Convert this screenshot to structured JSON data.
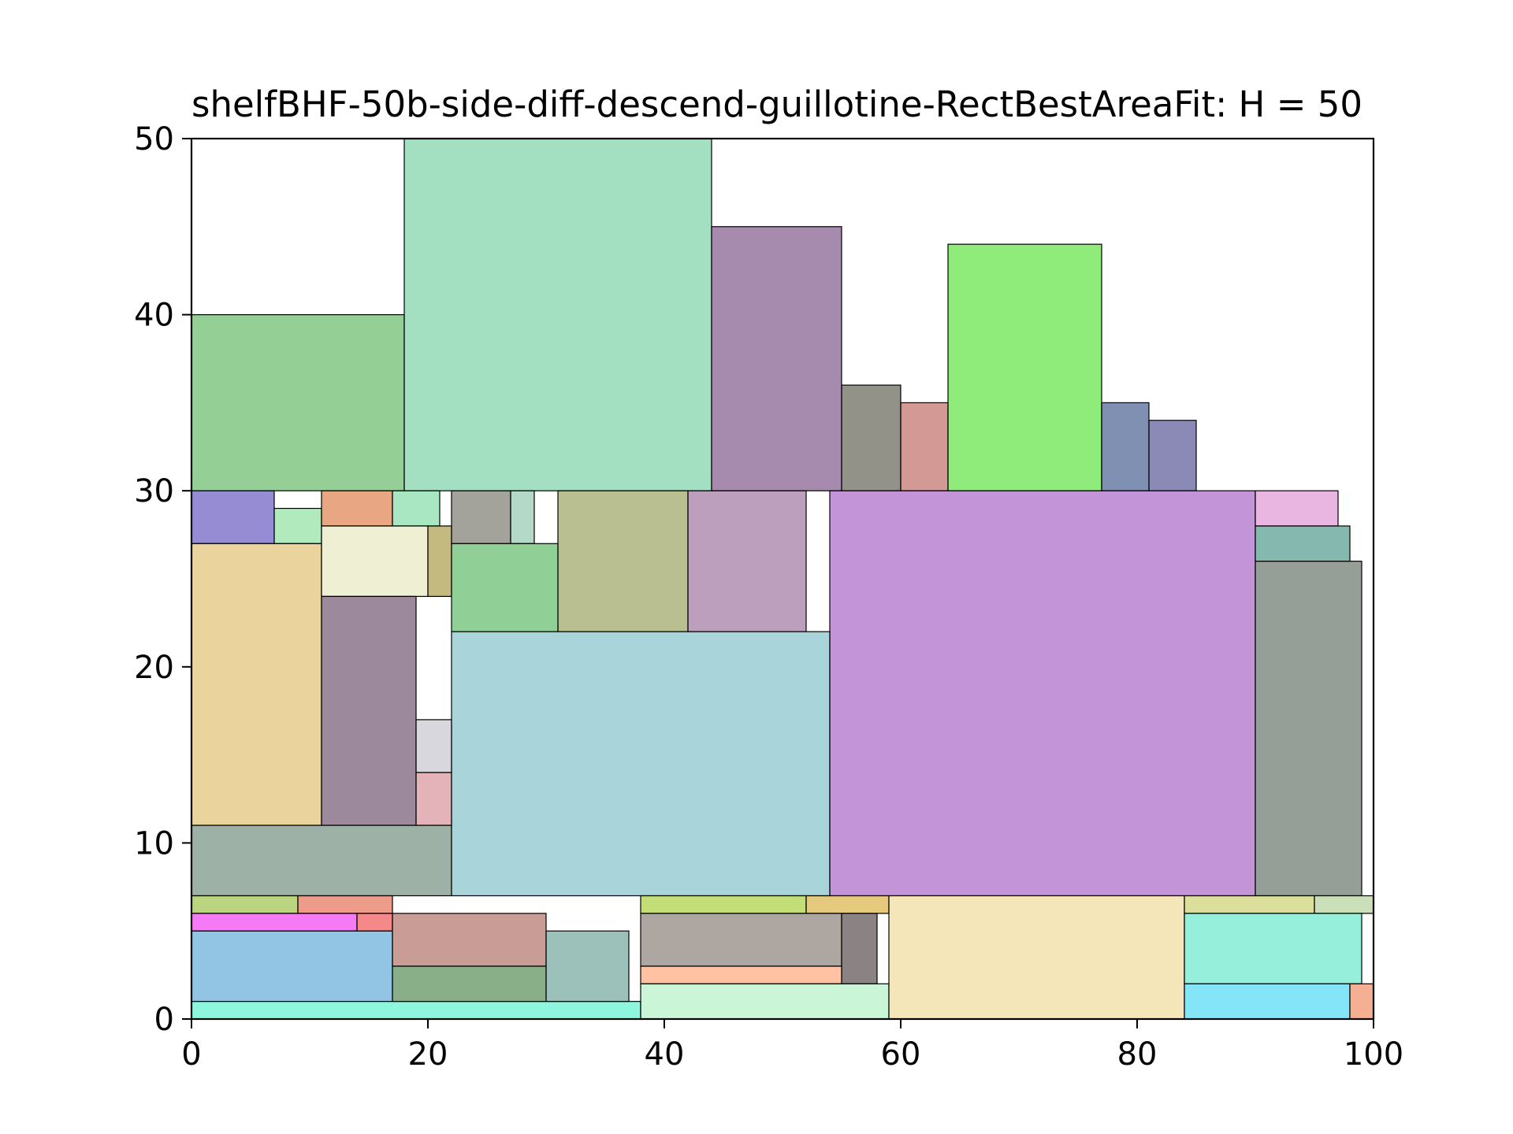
{
  "chart_data": {
    "type": "rectangle-packing",
    "title": "shelfBHF-50b-side-diff-descend-guillotine-RectBestAreaFit: H = 50",
    "xlim": [
      0,
      100
    ],
    "ylim": [
      0,
      50
    ],
    "x_ticks": [
      0,
      20,
      40,
      60,
      80,
      100
    ],
    "y_ticks": [
      0,
      10,
      20,
      30,
      40,
      50
    ],
    "grid": false,
    "legend": "none",
    "rects": [
      {
        "x": 0,
        "y": 30,
        "w": 18,
        "h": 10,
        "color": "#4caf50"
      },
      {
        "x": 18,
        "y": 30,
        "w": 26,
        "h": 20,
        "color": "#66cc99"
      },
      {
        "x": 44,
        "y": 30,
        "w": 11,
        "h": 15,
        "color": "#6a3d7a"
      },
      {
        "x": 55,
        "y": 30,
        "w": 5,
        "h": 6,
        "color": "#4a4a3a"
      },
      {
        "x": 60,
        "y": 30,
        "w": 4,
        "h": 5,
        "color": "#b5564e"
      },
      {
        "x": 64,
        "y": 30,
        "w": 13,
        "h": 14,
        "color": "#44dd22"
      },
      {
        "x": 77,
        "y": 30,
        "w": 4,
        "h": 5,
        "color": "#2a4680"
      },
      {
        "x": 81,
        "y": 30,
        "w": 4,
        "h": 4,
        "color": "#3e3a86"
      },
      {
        "x": 0,
        "y": 27,
        "w": 7,
        "h": 3,
        "color": "#5040b8"
      },
      {
        "x": 7,
        "y": 27,
        "w": 4,
        "h": 2,
        "color": "#7ddc90"
      },
      {
        "x": 11,
        "y": 28,
        "w": 6,
        "h": 2,
        "color": "#d96a2f"
      },
      {
        "x": 17,
        "y": 28,
        "w": 4,
        "h": 2,
        "color": "#6fd69a"
      },
      {
        "x": 22,
        "y": 27,
        "w": 5,
        "h": 3,
        "color": "#676558"
      },
      {
        "x": 27,
        "y": 27,
        "w": 2,
        "h": 3,
        "color": "#82bfa4"
      },
      {
        "x": 31,
        "y": 22,
        "w": 11,
        "h": 8,
        "color": "#8c9447"
      },
      {
        "x": 42,
        "y": 22,
        "w": 10,
        "h": 8,
        "color": "#8f5f8f"
      },
      {
        "x": 54,
        "y": 7,
        "w": 36,
        "h": 23,
        "color": "#9c4cc0"
      },
      {
        "x": 90,
        "y": 28,
        "w": 7,
        "h": 2,
        "color": "#d986cc"
      },
      {
        "x": 90,
        "y": 26,
        "w": 8,
        "h": 2,
        "color": "#338a7a"
      },
      {
        "x": 90,
        "y": 7,
        "w": 9,
        "h": 19,
        "color": "#4e5f52"
      },
      {
        "x": 0,
        "y": 11,
        "w": 11,
        "h": 16,
        "color": "#dcb65a"
      },
      {
        "x": 11,
        "y": 24,
        "w": 9,
        "h": 4,
        "color": "#e4e4b8"
      },
      {
        "x": 20,
        "y": 24,
        "w": 2,
        "h": 4,
        "color": "#9c8a28"
      },
      {
        "x": 22,
        "y": 22,
        "w": 9,
        "h": 5,
        "color": "#46b050"
      },
      {
        "x": 11,
        "y": 11,
        "w": 8,
        "h": 13,
        "color": "#5c3a5a"
      },
      {
        "x": 19,
        "y": 14,
        "w": 3,
        "h": 3,
        "color": "#bdbdc6"
      },
      {
        "x": 19,
        "y": 11,
        "w": 3,
        "h": 3,
        "color": "#d0808a"
      },
      {
        "x": 0,
        "y": 7,
        "w": 22,
        "h": 4,
        "color": "#5c7d6a"
      },
      {
        "x": 22,
        "y": 7,
        "w": 32,
        "h": 15,
        "color": "#70b8c2"
      },
      {
        "x": 0,
        "y": 6,
        "w": 9,
        "h": 1,
        "color": "#8cb82c"
      },
      {
        "x": 9,
        "y": 6,
        "w": 8,
        "h": 1,
        "color": "#e05a3a"
      },
      {
        "x": 0,
        "y": 5,
        "w": 14,
        "h": 1,
        "color": "#ee22ee"
      },
      {
        "x": 14,
        "y": 5,
        "w": 3,
        "h": 1,
        "color": "#ee3a3a"
      },
      {
        "x": 0,
        "y": 1,
        "w": 17,
        "h": 4,
        "color": "#4a9ed0"
      },
      {
        "x": 0,
        "y": 0,
        "w": 38,
        "h": 1,
        "color": "#44f0c8"
      },
      {
        "x": 17,
        "y": 3,
        "w": 13,
        "h": 3,
        "color": "#a55a4e"
      },
      {
        "x": 17,
        "y": 1,
        "w": 13,
        "h": 2,
        "color": "#3a7a3a"
      },
      {
        "x": 30,
        "y": 1,
        "w": 7,
        "h": 4,
        "color": "#5a988c"
      },
      {
        "x": 38,
        "y": 6,
        "w": 14,
        "h": 1,
        "color": "#9cc81c"
      },
      {
        "x": 52,
        "y": 6,
        "w": 7,
        "h": 1,
        "color": "#d4a524"
      },
      {
        "x": 38,
        "y": 3,
        "w": 17,
        "h": 3,
        "color": "#786a62"
      },
      {
        "x": 55,
        "y": 2,
        "w": 3,
        "h": 4,
        "color": "#3e2e30"
      },
      {
        "x": 38,
        "y": 2,
        "w": 17,
        "h": 1,
        "color": "#ff9a66"
      },
      {
        "x": 38,
        "y": 0,
        "w": 21,
        "h": 2,
        "color": "#a8eebc"
      },
      {
        "x": 59,
        "y": 0,
        "w": 25,
        "h": 7,
        "color": "#eed68c"
      },
      {
        "x": 84,
        "y": 6,
        "w": 11,
        "h": 1,
        "color": "#c4ca5a"
      },
      {
        "x": 95,
        "y": 6,
        "w": 5,
        "h": 1,
        "color": "#a8cc88"
      },
      {
        "x": 84,
        "y": 2,
        "w": 15,
        "h": 4,
        "color": "#50e4c2"
      },
      {
        "x": 84,
        "y": 0,
        "w": 14,
        "h": 2,
        "color": "#34d4f4"
      },
      {
        "x": 98,
        "y": 0,
        "w": 2,
        "h": 2,
        "color": "#ee7a4a"
      }
    ]
  }
}
